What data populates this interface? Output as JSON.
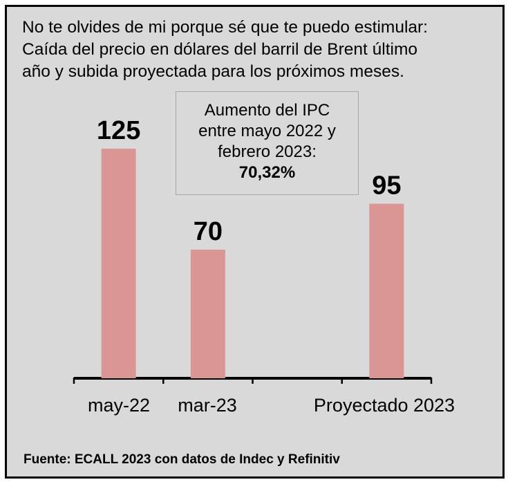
{
  "title_lines": [
    "No te olvides de mi porque sé que te puedo estimular:",
    "Caída del precio en dólares del barril de Brent último",
    "año y subida proyectada para los próximos meses."
  ],
  "annotation": {
    "lines": [
      "Aumento del IPC",
      "entre mayo 2022 y",
      "febrero 2023:"
    ],
    "value": "70,32%"
  },
  "source": "Fuente: ECALL 2023 con datos de Indec y Refinitiv",
  "colors": {
    "bar": "#d99694",
    "background": "#d9d9d9",
    "axis": "#000000"
  },
  "chart_data": {
    "type": "bar",
    "categories": [
      "may-22",
      "mar-23",
      "",
      "Proyectado 2023"
    ],
    "values": [
      125,
      70,
      null,
      95
    ],
    "value_labels": [
      "125",
      "70",
      "",
      "95"
    ],
    "ylim": [
      0,
      140
    ],
    "grid": false,
    "legend": "none"
  }
}
